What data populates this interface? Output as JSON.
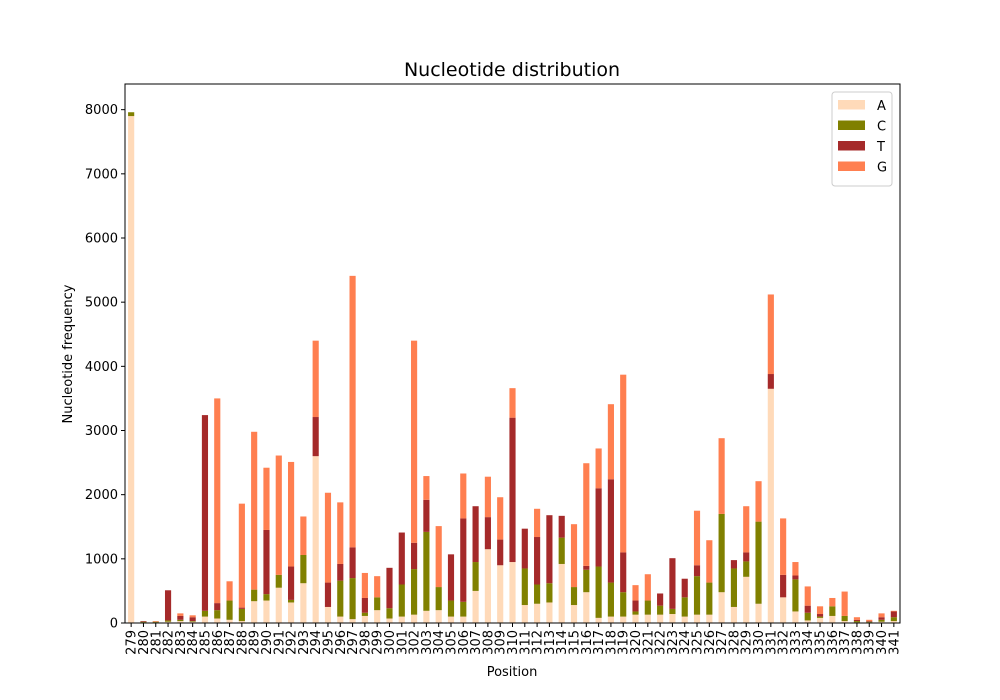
{
  "chart_data": {
    "type": "bar",
    "stacked": true,
    "title": "Nucleotide distribution",
    "xlabel": "Position",
    "ylabel": "Nucleotide frequency",
    "ylim": [
      0,
      8400
    ],
    "yticks": [
      0,
      1000,
      2000,
      3000,
      4000,
      5000,
      6000,
      7000,
      8000
    ],
    "legend": {
      "placement": "top-right"
    },
    "grid": false,
    "categories": [
      "279",
      "280",
      "281",
      "282",
      "283",
      "284",
      "285",
      "286",
      "287",
      "288",
      "289",
      "290",
      "291",
      "292",
      "293",
      "294",
      "295",
      "296",
      "297",
      "298",
      "299",
      "300",
      "301",
      "302",
      "303",
      "304",
      "305",
      "306",
      "307",
      "308",
      "309",
      "310",
      "311",
      "312",
      "313",
      "314",
      "315",
      "316",
      "317",
      "318",
      "319",
      "320",
      "321",
      "322",
      "323",
      "324",
      "325",
      "326",
      "327",
      "328",
      "329",
      "330",
      "331",
      "332",
      "333",
      "334",
      "335",
      "336",
      "337",
      "338",
      "339",
      "340",
      "341"
    ],
    "series": [
      {
        "name": "A",
        "color": "#ffdab9",
        "values": [
          7900,
          10,
          10,
          20,
          30,
          20,
          100,
          70,
          50,
          30,
          340,
          350,
          550,
          320,
          620,
          2600,
          250,
          100,
          60,
          110,
          200,
          70,
          100,
          130,
          190,
          200,
          100,
          100,
          500,
          1150,
          900,
          950,
          280,
          300,
          320,
          920,
          280,
          480,
          80,
          100,
          100,
          130,
          130,
          130,
          140,
          100,
          130,
          130,
          480,
          250,
          720,
          300,
          3650,
          400,
          180,
          40,
          80,
          110,
          30,
          10,
          10,
          20,
          30
        ]
      },
      {
        "name": "C",
        "color": "#808000",
        "values": [
          60,
          10,
          10,
          20,
          20,
          10,
          90,
          130,
          300,
          190,
          180,
          100,
          200,
          40,
          440,
          0,
          0,
          560,
          640,
          50,
          200,
          160,
          500,
          710,
          1230,
          360,
          250,
          230,
          450,
          0,
          0,
          0,
          570,
          300,
          300,
          410,
          280,
          350,
          800,
          530,
          380,
          50,
          220,
          140,
          80,
          300,
          600,
          500,
          1220,
          600,
          240,
          1280,
          0,
          0,
          500,
          120,
          20,
          150,
          80,
          20,
          10,
          30,
          60
        ]
      },
      {
        "name": "T",
        "color": "#a52a2a",
        "values": [
          0,
          10,
          0,
          470,
          60,
          60,
          3050,
          110,
          0,
          20,
          0,
          1000,
          0,
          520,
          0,
          610,
          380,
          260,
          480,
          230,
          0,
          630,
          810,
          410,
          500,
          0,
          720,
          1300,
          870,
          500,
          400,
          2250,
          620,
          740,
          1060,
          340,
          0,
          60,
          1220,
          1610,
          620,
          170,
          0,
          190,
          790,
          290,
          170,
          0,
          0,
          130,
          140,
          0,
          230,
          350,
          60,
          110,
          40,
          0,
          0,
          20,
          10,
          40,
          90
        ]
      },
      {
        "name": "G",
        "color": "#ff7f50",
        "values": [
          0,
          0,
          10,
          0,
          40,
          30,
          0,
          3190,
          300,
          1620,
          2460,
          970,
          1860,
          1630,
          600,
          1190,
          1400,
          960,
          4230,
          390,
          330,
          0,
          0,
          3150,
          370,
          950,
          0,
          700,
          0,
          630,
          660,
          460,
          0,
          440,
          0,
          0,
          980,
          1600,
          620,
          1170,
          2770,
          240,
          410,
          0,
          0,
          0,
          850,
          660,
          1180,
          0,
          720,
          630,
          1240,
          880,
          210,
          300,
          120,
          130,
          380,
          40,
          20,
          60,
          10
        ]
      }
    ]
  }
}
